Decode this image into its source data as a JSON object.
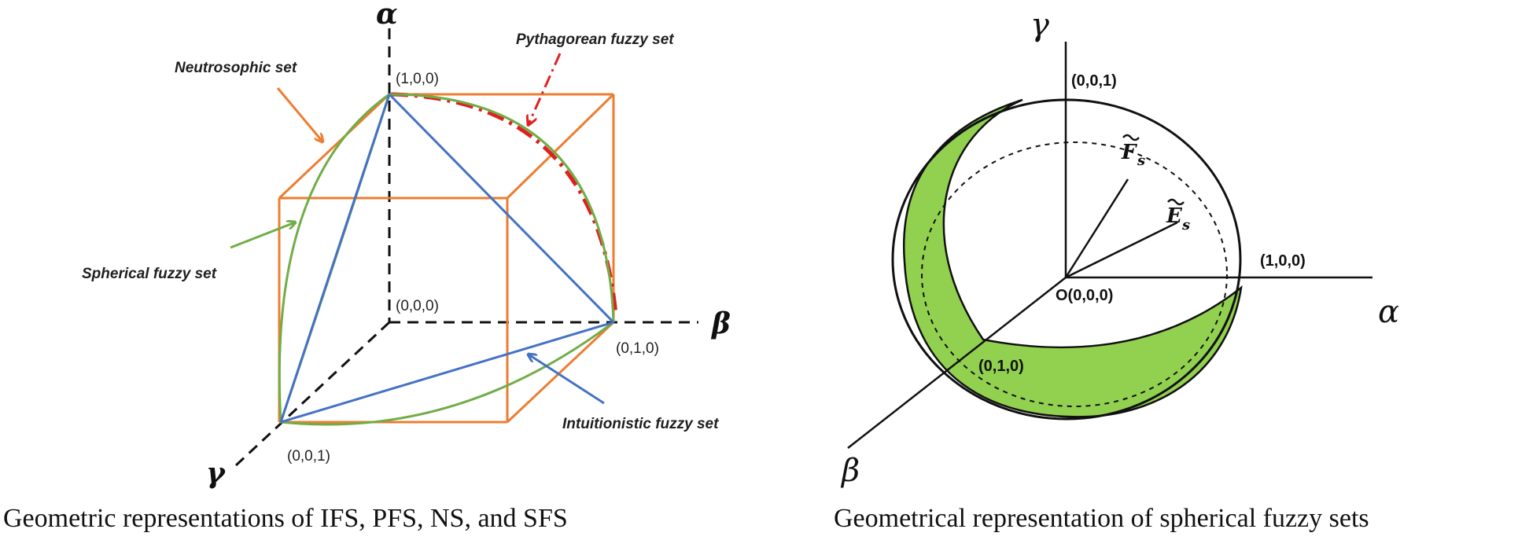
{
  "left_panel": {
    "caption": "Geometric representations of IFS, PFS, NS, and SFS",
    "axis_alpha": "α",
    "axis_beta": "β",
    "axis_gamma": "γ",
    "point_100": "(1,0,0)",
    "point_000": "(0,0,0)",
    "point_010": "(0,1,0)",
    "point_001": "(0,0,1)",
    "label_neutrosophic": "Neutrosophic set",
    "label_pythagorean": "Pythagorean fuzzy set",
    "label_spherical": "Spherical fuzzy set",
    "label_intuitionistic": "Intuitionistic fuzzy set",
    "colors": {
      "neutrosophic": "#ED7D31",
      "pythagorean": "#E02020",
      "spherical": "#70AD47",
      "intuitionistic": "#4472C4"
    }
  },
  "right_panel": {
    "caption": "Geometrical representation of spherical fuzzy sets",
    "axis_alpha": "α",
    "axis_beta": "β",
    "axis_gamma": "γ",
    "point_001": "(0,0,1)",
    "point_100": "(1,0,0)",
    "point_010": "(0,1,0)",
    "origin": "O(0,0,0)",
    "vector_f": "F",
    "vector_f_sub": "s",
    "vector_e": "E",
    "vector_e_sub": "s",
    "colors": {
      "fill": "#92D050"
    }
  }
}
